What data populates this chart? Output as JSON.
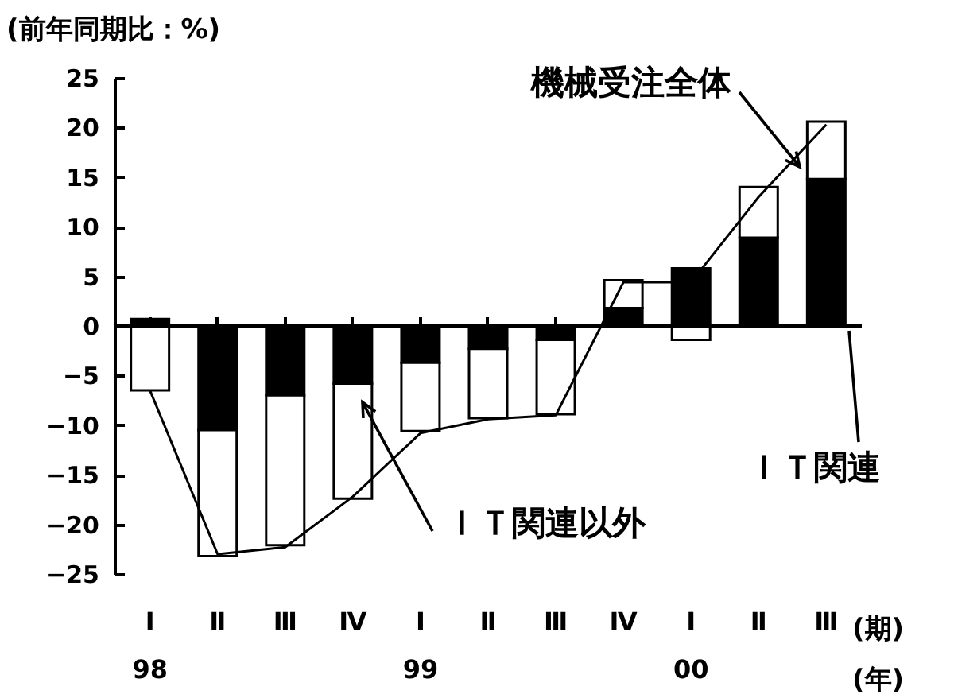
{
  "chart_data": {
    "type": "bar",
    "stacked": true,
    "ylabel": "(前年同期比：%)",
    "xlabel": "(期)",
    "annotations": [
      "(年)"
    ],
    "categories": [
      "Ⅰ\n98",
      "Ⅱ",
      "Ⅲ",
      "Ⅳ",
      "Ⅰ\n99",
      "Ⅱ",
      "Ⅲ",
      "Ⅳ",
      "Ⅰ\n00",
      "Ⅱ",
      "Ⅲ"
    ],
    "series": [
      {
        "name": "ＩＴ関連",
        "color": "#000000",
        "values": [
          0.7,
          -10.5,
          -7.0,
          -5.8,
          -3.7,
          -2.3,
          -1.4,
          1.8,
          5.8,
          8.9,
          14.8
        ]
      },
      {
        "name": "ＩＴ関連以外",
        "color": "#ffffff",
        "values": [
          -6.5,
          -12.7,
          -15.1,
          -11.6,
          -6.9,
          -7.0,
          -7.5,
          2.8,
          -1.4,
          5.1,
          5.8
        ]
      },
      {
        "name": "機械受注全体",
        "type": "line",
        "color": "#000000",
        "values": [
          -6.5,
          -23.0,
          -22.3,
          -17.2,
          -10.8,
          -9.4,
          -9.0,
          4.4,
          4.4,
          13.0,
          20.3
        ]
      }
    ],
    "ylim": [
      -25,
      25
    ],
    "yticks": [
      -25,
      -20,
      -15,
      -10,
      -5,
      0,
      5,
      10,
      15,
      20,
      25
    ],
    "ref_lines": [
      {
        "axis": "y",
        "value": 0
      }
    ],
    "grid": false,
    "legend": false,
    "marker": "none"
  }
}
